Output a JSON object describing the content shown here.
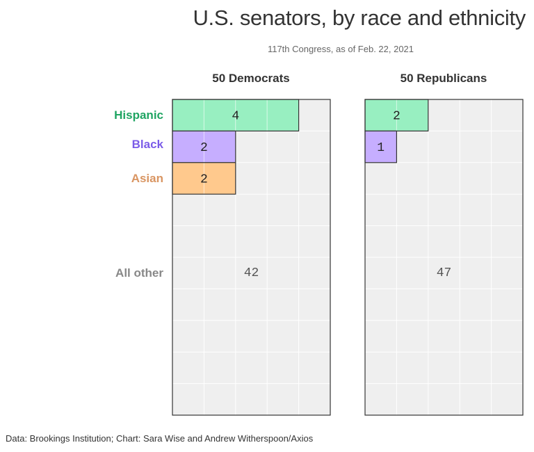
{
  "title": "U.S. senators, by race and ethnicity",
  "subtitle": "117th Congress, as of Feb. 22, 2021",
  "footer": "Data: Brookings Institution; Chart: Sara Wise and Andrew Witherspoon/Axios",
  "colors": {
    "hispanic_fill": "#98efc1",
    "hispanic_text": "#1fa462",
    "black_fill": "#c6aeff",
    "black_text": "#7b5ce8",
    "asian_fill": "#ffc98d",
    "asian_text": "#d99562",
    "other_fill": "#efefef",
    "other_text": "#888888",
    "grid": "#ffffff",
    "border": "#333333"
  },
  "chart_data": {
    "type": "waffle",
    "grid": {
      "columns": 5,
      "rows": 10
    },
    "categories": [
      "Hispanic",
      "Black",
      "Asian",
      "All other"
    ],
    "panels": [
      {
        "title": "50 Democrats",
        "values": [
          4,
          2,
          2,
          42
        ]
      },
      {
        "title": "50 Republicans",
        "values": [
          2,
          1,
          0,
          47
        ]
      }
    ]
  }
}
